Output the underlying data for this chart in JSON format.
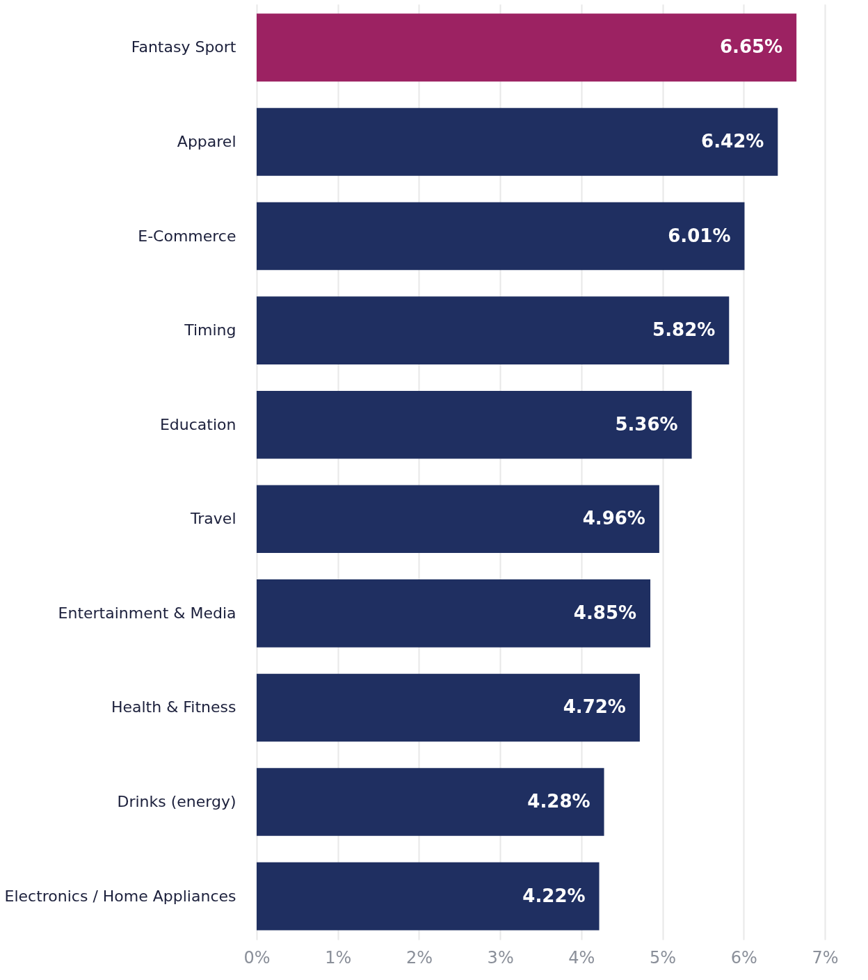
{
  "chart_data": {
    "type": "bar",
    "orientation": "horizontal",
    "categories": [
      "Fantasy Sport",
      "Apparel",
      "E-Commerce",
      "Timing",
      "Education",
      "Travel",
      "Entertainment & Media",
      "Health & Fitness",
      "Drinks (energy)",
      "Electronics / Home Appliances"
    ],
    "values": [
      6.65,
      6.42,
      6.01,
      5.82,
      5.36,
      4.96,
      4.85,
      4.72,
      4.28,
      4.22
    ],
    "colors": [
      "#9c2262",
      "#1f2f61",
      "#1f2f61",
      "#1f2f61",
      "#1f2f61",
      "#1f2f61",
      "#1f2f61",
      "#1f2f61",
      "#1f2f61",
      "#1f2f61"
    ],
    "value_labels": [
      "6.65%",
      "6.42%",
      "6.01%",
      "5.82%",
      "5.36%",
      "4.96%",
      "4.85%",
      "4.72%",
      "4.28%",
      "4.22%"
    ],
    "xlim": [
      0,
      7
    ],
    "xticks": [
      {
        "value": 0,
        "label": "0%"
      },
      {
        "value": 1,
        "label": "1%"
      },
      {
        "value": 2,
        "label": "2%"
      },
      {
        "value": 3,
        "label": "3%"
      },
      {
        "value": 4,
        "label": "4%"
      },
      {
        "value": 5,
        "label": "5%"
      },
      {
        "value": 6,
        "label": "6%"
      },
      {
        "value": 7,
        "label": "7%"
      }
    ],
    "grid": "x"
  }
}
